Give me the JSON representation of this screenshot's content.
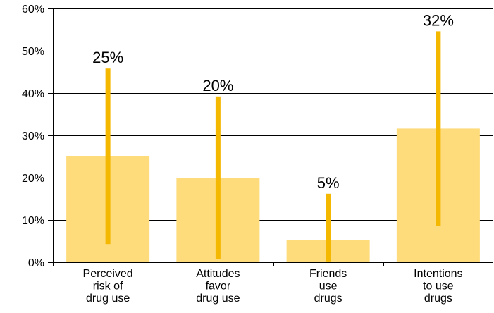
{
  "chart_data": {
    "type": "bar",
    "categories": [
      [
        "Perceived",
        "risk of",
        "drug use"
      ],
      [
        "Attitudes",
        "favor",
        "drug use"
      ],
      [
        "Friends",
        "use",
        "drugs"
      ],
      [
        "Intentions",
        "to use",
        "drugs"
      ]
    ],
    "values": [
      25,
      20,
      5.2,
      31.6
    ],
    "value_labels": [
      "25%",
      "20%",
      "5%",
      "32%"
    ],
    "error_low": [
      4.3,
      0.8,
      0.2,
      8.6
    ],
    "error_high": [
      45.8,
      39.2,
      16.2,
      54.6
    ],
    "ylim": [
      0,
      60
    ],
    "yticks": [
      0,
      10,
      20,
      30,
      40,
      50,
      60
    ],
    "ytick_labels": [
      "0%",
      "10%",
      "20%",
      "30%",
      "40%",
      "50%",
      "60%"
    ],
    "title": "",
    "xlabel": "",
    "ylabel": "",
    "grid": true,
    "colors": {
      "bar": "#fedc7b",
      "error": "#f5b800",
      "grid": "#000000"
    }
  }
}
